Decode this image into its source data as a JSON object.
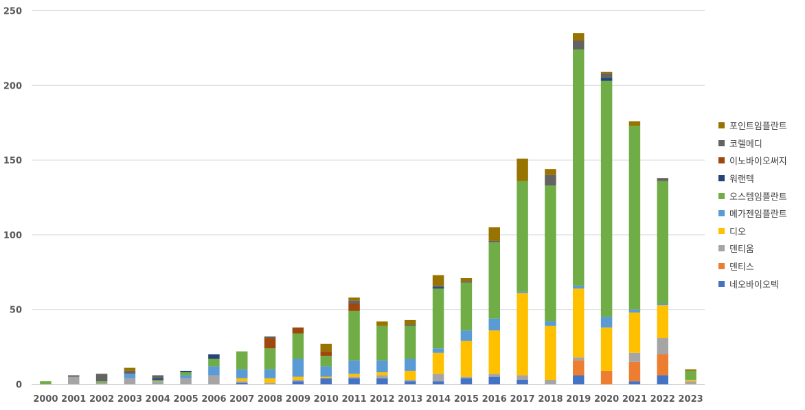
{
  "chart_data": {
    "type": "bar",
    "stacked": true,
    "title": "",
    "xlabel": "",
    "ylabel": "",
    "ylim": [
      0,
      250
    ],
    "yticks": [
      0,
      50,
      100,
      150,
      200,
      250
    ],
    "grid": true,
    "legend_position": "right",
    "categories": [
      "2000",
      "2001",
      "2002",
      "2003",
      "2004",
      "2005",
      "2006",
      "2007",
      "2008",
      "2009",
      "2010",
      "2011",
      "2012",
      "2013",
      "2014",
      "2015",
      "2016",
      "2017",
      "2018",
      "2019",
      "2020",
      "2021",
      "2022",
      "2023"
    ],
    "series": [
      {
        "name": "네오바이오텍",
        "color": "#4472c4",
        "values": [
          0,
          0,
          0,
          0,
          0,
          0,
          0,
          1,
          0,
          2,
          4,
          4,
          4,
          2,
          2,
          4,
          5,
          3,
          0,
          6,
          0,
          2,
          6,
          0
        ]
      },
      {
        "name": "덴티스",
        "color": "#ed7d31",
        "values": [
          0,
          0,
          0,
          0,
          0,
          0,
          0,
          0,
          0,
          0,
          0,
          0,
          0,
          0,
          0,
          0,
          0,
          0,
          0,
          10,
          9,
          13,
          14,
          0
        ]
      },
      {
        "name": "덴티움",
        "color": "#a5a5a5",
        "values": [
          0,
          5,
          1,
          4,
          2,
          4,
          6,
          1,
          1,
          1,
          0,
          1,
          2,
          1,
          5,
          1,
          2,
          3,
          3,
          2,
          0,
          6,
          11,
          2
        ]
      },
      {
        "name": "디오",
        "color": "#ffc000",
        "values": [
          0,
          0,
          0,
          0,
          0,
          0,
          0,
          2,
          3,
          2,
          1,
          2,
          2,
          6,
          14,
          24,
          29,
          55,
          36,
          46,
          29,
          27,
          22,
          1
        ]
      },
      {
        "name": "메가젠임플란트",
        "color": "#5b9bd5",
        "values": [
          0,
          0,
          0,
          3,
          0,
          2,
          6,
          6,
          6,
          12,
          7,
          9,
          8,
          8,
          3,
          7,
          8,
          1,
          3,
          2,
          7,
          2,
          1,
          0
        ]
      },
      {
        "name": "오스템임플란트",
        "color": "#70ad47",
        "values": [
          2,
          0,
          1,
          0,
          1,
          2,
          5,
          12,
          14,
          17,
          7,
          33,
          23,
          22,
          40,
          32,
          51,
          74,
          91,
          158,
          158,
          123,
          82,
          6
        ]
      },
      {
        "name": "워랜텍",
        "color": "#264478",
        "values": [
          0,
          0,
          0,
          0,
          1,
          1,
          3,
          0,
          0,
          0,
          0,
          0,
          0,
          0,
          1,
          0,
          0,
          0,
          0,
          0,
          2,
          0,
          0,
          0
        ]
      },
      {
        "name": "이노바이오써지",
        "color": "#9e480e",
        "values": [
          0,
          0,
          0,
          0,
          0,
          0,
          0,
          0,
          7,
          4,
          3,
          5,
          0,
          0,
          0,
          0,
          0,
          0,
          0,
          0,
          0,
          0,
          0,
          0
        ]
      },
      {
        "name": "코렐메디",
        "color": "#636363",
        "values": [
          0,
          1,
          5,
          2,
          2,
          0,
          0,
          0,
          1,
          0,
          0,
          2,
          0,
          1,
          1,
          1,
          1,
          0,
          7,
          6,
          3,
          0,
          2,
          0
        ]
      },
      {
        "name": "포인트임플란트",
        "color": "#997300",
        "values": [
          0,
          0,
          0,
          2,
          0,
          0,
          0,
          0,
          0,
          0,
          5,
          2,
          3,
          3,
          7,
          2,
          9,
          15,
          4,
          5,
          1,
          3,
          0,
          1
        ]
      }
    ],
    "legend_order": [
      "포인트임플란트",
      "코렐메디",
      "이노바이오써지",
      "워랜텍",
      "오스템임플란트",
      "메가젠임플란트",
      "디오",
      "덴티움",
      "덴티스",
      "네오바이오텍"
    ]
  }
}
